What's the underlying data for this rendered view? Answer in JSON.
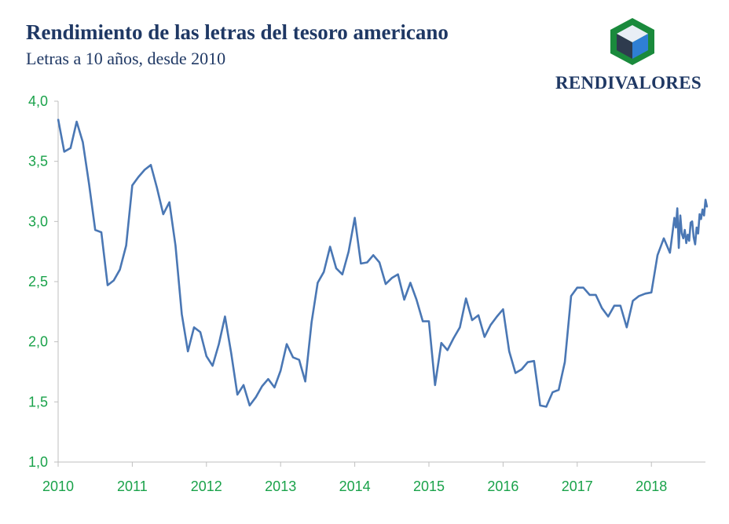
{
  "header": {
    "title": "Rendimiento de las letras del tesoro americano",
    "subtitle": "Letras a 10 años, desde 2010"
  },
  "logo": {
    "name": "RENDIVALORES",
    "icon": "cube-icon",
    "colors": {
      "hex": "#1a8a3c",
      "top": "#e9eef5",
      "left": "#2e3b4e",
      "right": "#2f7fd4"
    }
  },
  "chart_data": {
    "type": "line",
    "ylim": [
      1.0,
      4.0
    ],
    "xlim": [
      2010,
      2018.75
    ],
    "yticks": [
      "1,0",
      "1,5",
      "2,0",
      "2,5",
      "3,0",
      "3,5",
      "4,0"
    ],
    "yticks_values": [
      1.0,
      1.5,
      2.0,
      2.5,
      3.0,
      3.5,
      4.0
    ],
    "xticks": [
      "2010",
      "2011",
      "2012",
      "2013",
      "2014",
      "2015",
      "2016",
      "2017",
      "2018"
    ],
    "xticks_values": [
      2010,
      2011,
      2012,
      2013,
      2014,
      2015,
      2016,
      2017,
      2018
    ],
    "grid": false,
    "line_color": "#4a77b4",
    "tick_color": "#1aa24a",
    "series": [
      {
        "x": [
          2010.0,
          2010.083,
          2010.167,
          2010.25,
          2010.333,
          2010.417,
          2010.5,
          2010.583,
          2010.667,
          2010.75,
          2010.833,
          2010.917,
          2011.0,
          2011.083,
          2011.167,
          2011.25,
          2011.333,
          2011.417,
          2011.5,
          2011.583,
          2011.667,
          2011.75,
          2011.833,
          2011.917,
          2012.0,
          2012.083,
          2012.167,
          2012.25,
          2012.333,
          2012.417,
          2012.5,
          2012.583,
          2012.667,
          2012.75,
          2012.833,
          2012.917,
          2013.0,
          2013.083,
          2013.167,
          2013.25,
          2013.333,
          2013.417,
          2013.5,
          2013.583,
          2013.667,
          2013.75,
          2013.833,
          2013.917,
          2014.0,
          2014.083,
          2014.167,
          2014.25,
          2014.333,
          2014.417,
          2014.5,
          2014.583,
          2014.667,
          2014.75,
          2014.833,
          2014.917,
          2015.0,
          2015.083,
          2015.167,
          2015.25,
          2015.333,
          2015.417,
          2015.5,
          2015.583,
          2015.667,
          2015.75,
          2015.833,
          2015.917,
          2016.0,
          2016.083,
          2016.167,
          2016.25,
          2016.333,
          2016.417,
          2016.5,
          2016.583,
          2016.667,
          2016.75,
          2016.833,
          2016.917,
          2017.0,
          2017.083,
          2017.167,
          2017.25,
          2017.333,
          2017.417,
          2017.5,
          2017.583,
          2017.667,
          2017.75,
          2017.833,
          2017.917,
          2018.0,
          2018.083,
          2018.167,
          2018.25,
          2018.28,
          2018.31,
          2018.33,
          2018.35,
          2018.37,
          2018.39,
          2018.41,
          2018.43,
          2018.45,
          2018.47,
          2018.49,
          2018.51,
          2018.53,
          2018.55,
          2018.57,
          2018.59,
          2018.61,
          2018.63,
          2018.65,
          2018.67,
          2018.69,
          2018.71,
          2018.73,
          2018.75
        ],
        "y": [
          3.85,
          3.58,
          3.61,
          3.83,
          3.66,
          3.31,
          2.93,
          2.91,
          2.47,
          2.51,
          2.6,
          2.8,
          3.3,
          3.37,
          3.43,
          3.47,
          3.28,
          3.06,
          3.16,
          2.8,
          2.23,
          1.92,
          2.12,
          2.08,
          1.88,
          1.8,
          1.98,
          2.21,
          1.91,
          1.56,
          1.64,
          1.47,
          1.54,
          1.63,
          1.69,
          1.62,
          1.76,
          1.98,
          1.87,
          1.85,
          1.67,
          2.16,
          2.49,
          2.58,
          2.79,
          2.61,
          2.56,
          2.75,
          3.03,
          2.65,
          2.66,
          2.72,
          2.66,
          2.48,
          2.53,
          2.56,
          2.35,
          2.49,
          2.35,
          2.17,
          2.17,
          1.64,
          1.99,
          1.93,
          2.03,
          2.12,
          2.36,
          2.18,
          2.22,
          2.04,
          2.14,
          2.21,
          2.27,
          1.92,
          1.74,
          1.77,
          1.83,
          1.84,
          1.47,
          1.46,
          1.58,
          1.6,
          1.83,
          2.38,
          2.45,
          2.45,
          2.39,
          2.39,
          2.28,
          2.21,
          2.3,
          2.3,
          2.12,
          2.34,
          2.38,
          2.4,
          2.41,
          2.72,
          2.86,
          2.74,
          2.88,
          3.03,
          2.95,
          3.11,
          2.78,
          3.05,
          2.9,
          2.86,
          2.93,
          2.82,
          2.89,
          2.84,
          2.99,
          3.0,
          2.87,
          2.81,
          2.95,
          2.9,
          3.06,
          3.02,
          3.1,
          3.05,
          3.18,
          3.12
        ]
      }
    ]
  }
}
